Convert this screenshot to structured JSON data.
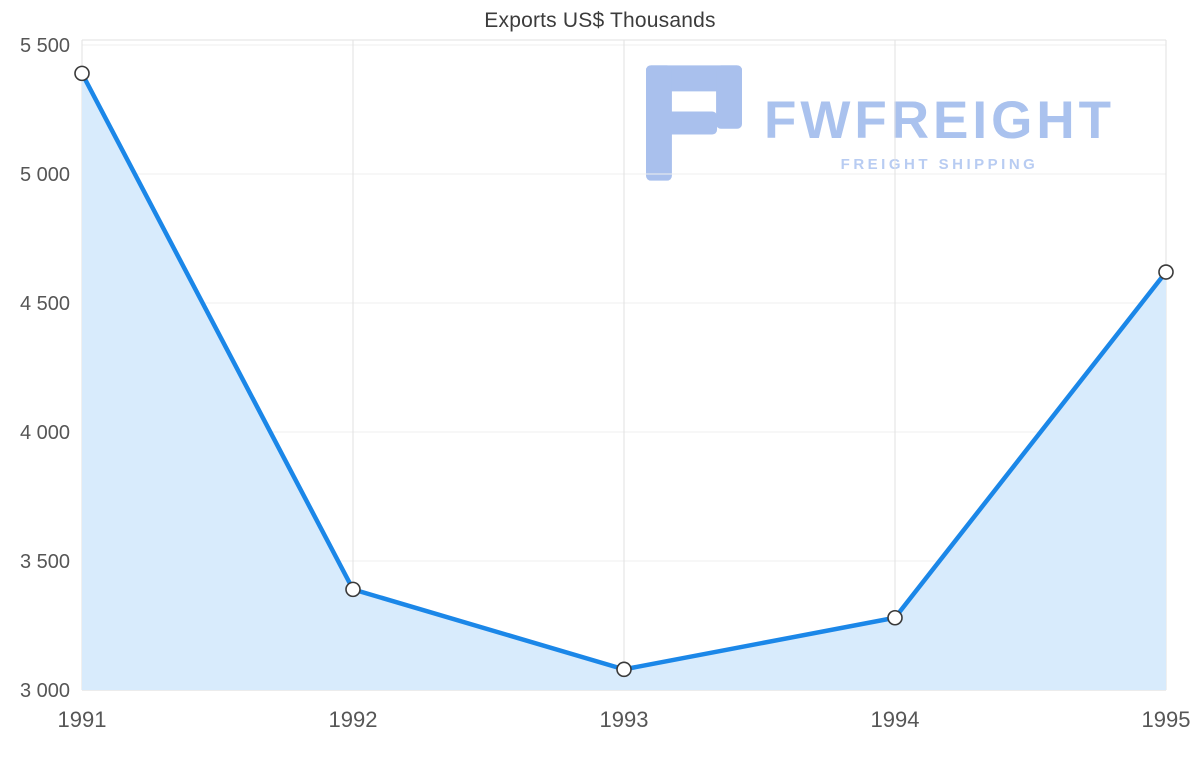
{
  "title": "Exports US$ Thousands",
  "watermark": {
    "brand": "FWFREIGHT",
    "tagline": "FREIGHT SHIPPING",
    "brand_color": "#aac2ee",
    "tagline_color": "#b8ccf2",
    "glyph_color": "#a9c0ed"
  },
  "chart_data": {
    "type": "area",
    "title": "Exports US$ Thousands",
    "x": [
      1991,
      1992,
      1993,
      1994,
      1995
    ],
    "xtick_labels": [
      "1991",
      "1992",
      "1993",
      "1994",
      "1995"
    ],
    "series": [
      {
        "name": "Exports US$ Thousands",
        "values": [
          5390,
          3390,
          3080,
          3280,
          4620
        ]
      }
    ],
    "ylim": [
      3000,
      5500
    ],
    "ytick_interval": 500,
    "ytick_labels": [
      "3 000",
      "3 500",
      "4 000",
      "4 500",
      "5 000",
      "5 500"
    ],
    "grid": true,
    "legend": "none",
    "line_color": "#1b87e8",
    "area_color": "#d8ebfc",
    "marker_fill": "#ffffff",
    "marker_stroke": "#3a3a3a",
    "axis_label_color": "#565656",
    "grid_color": "#e2e2e2",
    "minor_grid_color": "#efefef",
    "baseline_color": "#d8d8d8"
  }
}
